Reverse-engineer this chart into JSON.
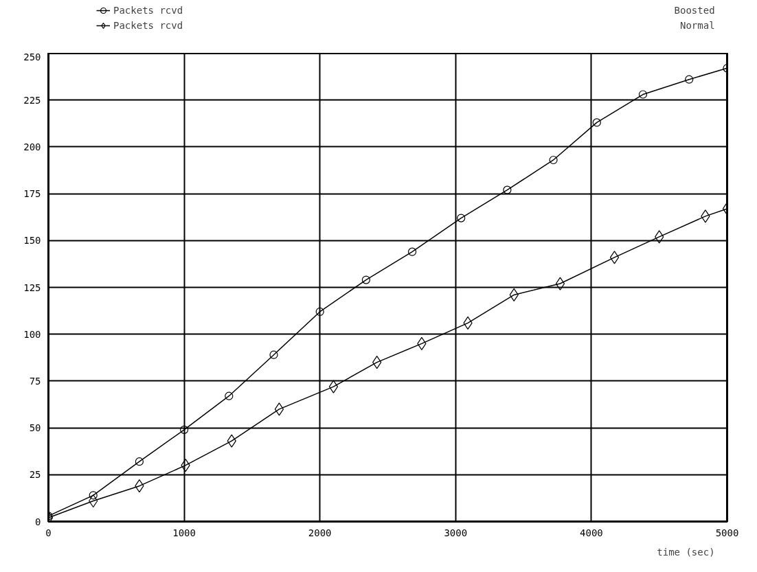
{
  "chart_data": {
    "type": "line",
    "xlabel": "time (sec)",
    "xlim": [
      0,
      5000
    ],
    "ylim": [
      0,
      250
    ],
    "xticks": [
      0,
      1000,
      2000,
      3000,
      4000,
      5000
    ],
    "yticks": [
      0,
      25,
      50,
      75,
      100,
      125,
      150,
      175,
      200,
      225,
      250
    ],
    "grid": true,
    "legend": "top left",
    "line_style": "solid",
    "annotations": [
      "Boosted",
      "Normal"
    ],
    "series": [
      {
        "name": "Packets rcvd",
        "color": "#000000",
        "marker": "circle",
        "x": [
          0,
          330,
          670,
          1000,
          1330,
          1660,
          2000,
          2340,
          2680,
          3040,
          3380,
          3720,
          4040,
          4380,
          4720,
          5000
        ],
        "values": [
          3,
          14,
          32,
          49,
          67,
          89,
          112,
          129,
          144,
          162,
          177,
          193,
          213,
          228,
          236,
          242
        ]
      },
      {
        "name": "Packets rcvd",
        "color": "#000000",
        "marker": "diamond",
        "x": [
          0,
          330,
          670,
          1010,
          1350,
          1700,
          2100,
          2420,
          2750,
          3090,
          3430,
          3770,
          4170,
          4500,
          4840,
          5000
        ],
        "values": [
          2,
          11,
          19,
          30,
          43,
          60,
          72,
          85,
          95,
          106,
          121,
          127,
          141,
          152,
          163,
          167
        ]
      }
    ]
  }
}
